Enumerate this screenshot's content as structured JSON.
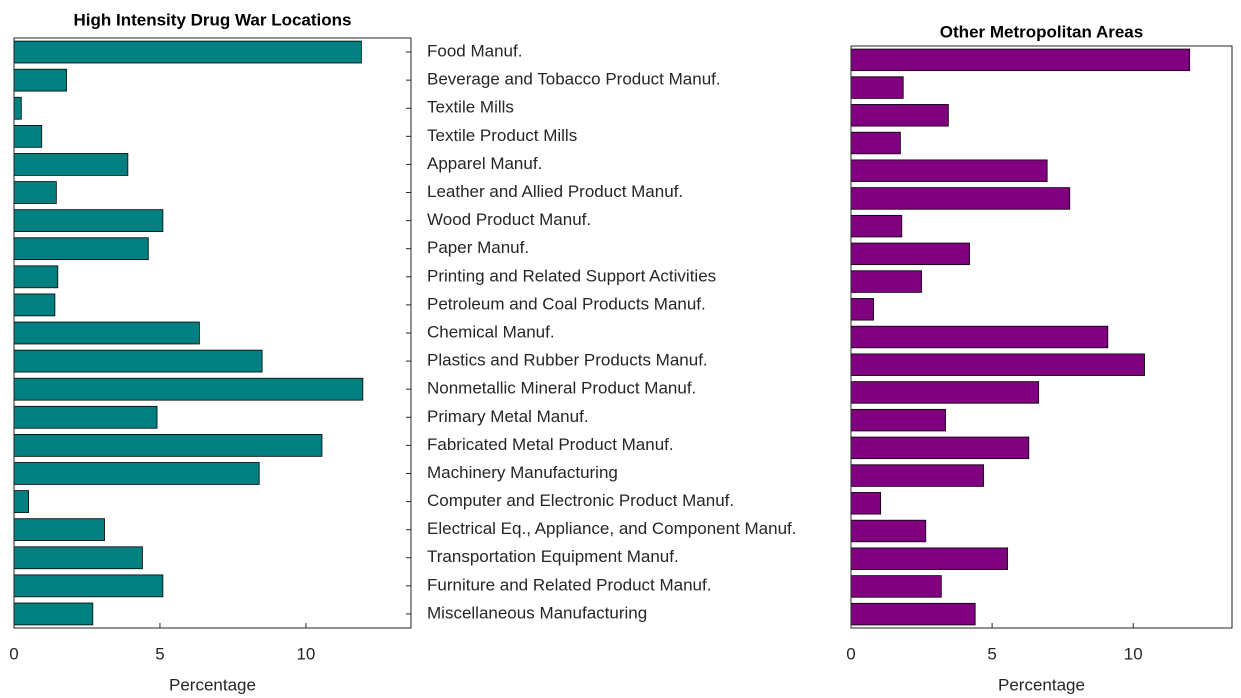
{
  "chart_data": [
    {
      "type": "barh",
      "title": "High Intensity Drug War Locations",
      "xlabel": "Percentage",
      "color": "#008080",
      "categories": [
        "Food Manuf.",
        "Beverage and Tobacco Product Manuf.",
        "Textile Mills",
        "Textile Product Mills",
        "Apparel Manuf.",
        "Leather and Allied Product Manuf.",
        "Wood Product Manuf.",
        "Paper Manuf.",
        "Printing and Related Support Activities",
        "Petroleum and Coal Products Manuf.",
        "Chemical Manuf.",
        "Plastics and Rubber Products Manuf.",
        "Nonmetallic Mineral Product Manuf.",
        "Primary Metal Manuf.",
        "Fabricated Metal Product Manuf.",
        "Machinery Manufacturing",
        "Computer and Electronic Product Manuf.",
        "Electrical Eq., Appliance, and Component Manuf.",
        "Transportation Equipment Manuf.",
        "Furniture and Related Product Manuf.",
        "Miscellaneous Manufacturing"
      ],
      "values": [
        11.9,
        1.8,
        0.25,
        0.95,
        3.9,
        1.45,
        5.1,
        4.6,
        1.5,
        1.4,
        6.35,
        8.5,
        11.95,
        4.9,
        10.55,
        8.4,
        0.5,
        3.1,
        4.4,
        5.1,
        2.7
      ],
      "xlim": [
        0,
        13.6
      ],
      "xticks": [
        0,
        5,
        10
      ]
    },
    {
      "type": "barh",
      "title": "Other Metropolitan Areas",
      "xlabel": "Percentage",
      "color": "#800080",
      "values": [
        12.0,
        1.85,
        3.45,
        1.75,
        6.95,
        7.75,
        1.8,
        4.2,
        2.5,
        0.8,
        9.1,
        10.4,
        6.65,
        3.35,
        6.3,
        4.7,
        1.05,
        2.65,
        5.55,
        3.2,
        4.4
      ],
      "xlim": [
        0,
        13.5
      ],
      "xticks": [
        0,
        5,
        10
      ]
    }
  ]
}
